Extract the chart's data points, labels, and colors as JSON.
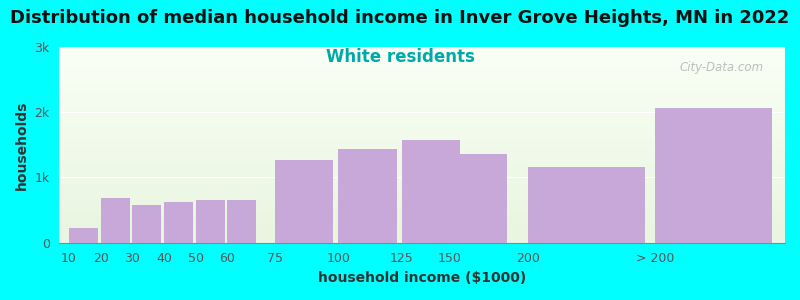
{
  "title": "Distribution of median household income in Inver Grove Heights, MN in 2022",
  "subtitle": "White residents",
  "xlabel": "household income ($1000)",
  "ylabel": "households",
  "background_color": "#00FFFF",
  "bar_color": "#C8A8D8",
  "categories": [
    "10",
    "20",
    "30",
    "40",
    "50",
    "60",
    "75",
    "100",
    "125",
    "150",
    "200",
    "> 200"
  ],
  "values": [
    220,
    680,
    580,
    630,
    650,
    660,
    1270,
    1430,
    1570,
    1360,
    1160,
    2060
  ],
  "positions": [
    0,
    1,
    2,
    3,
    4,
    5,
    6.5,
    8.5,
    10.5,
    12,
    14.5,
    18.5
  ],
  "widths": [
    1,
    1,
    1,
    1,
    1,
    1,
    2,
    2,
    2,
    2,
    4,
    4
  ],
  "ylim": [
    0,
    3000
  ],
  "yticks": [
    0,
    1000,
    2000,
    3000
  ],
  "ytick_labels": [
    "0",
    "1k",
    "2k",
    "3k"
  ],
  "title_fontsize": 13,
  "subtitle_fontsize": 12,
  "subtitle_color": "#00AAAA",
  "plot_bg_color_top": "#FAFFF5",
  "plot_bg_color_bottom": "#E8F5E0",
  "watermark": "City-Data.com"
}
